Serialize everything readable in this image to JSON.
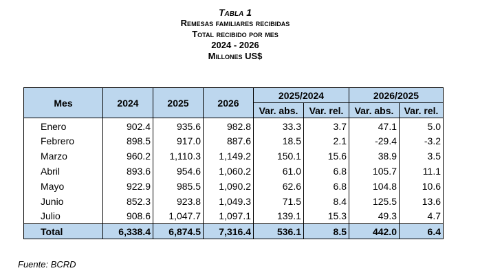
{
  "title": {
    "line1": "Tabla 1",
    "line2": "Remesas familiares recibidas",
    "line3": "Total recibido por mes",
    "line4": "2024 - 2026",
    "line5": "Millones US$"
  },
  "header": {
    "mes": "Mes",
    "y2024": "2024",
    "y2025": "2025",
    "y2026": "2026",
    "group1": "2025/2024",
    "group2": "2026/2025",
    "var_abs": "Var. abs.",
    "var_rel": "Var. rel."
  },
  "rows": [
    {
      "mes": "Enero",
      "v2024": "902.4",
      "v2025": "935.6",
      "v2026": "982.8",
      "abs1": "33.3",
      "rel1": "3.7",
      "abs2": "47.1",
      "rel2": "5.0"
    },
    {
      "mes": "Febrero",
      "v2024": "898.5",
      "v2025": "917.0",
      "v2026": "887.6",
      "abs1": "18.5",
      "rel1": "2.1",
      "abs2": "-29.4",
      "rel2": "-3.2"
    },
    {
      "mes": "Marzo",
      "v2024": "960.2",
      "v2025": "1,110.3",
      "v2026": "1,149.2",
      "abs1": "150.1",
      "rel1": "15.6",
      "abs2": "38.9",
      "rel2": "3.5"
    },
    {
      "mes": "Abril",
      "v2024": "893.6",
      "v2025": "954.6",
      "v2026": "1,060.2",
      "abs1": "61.0",
      "rel1": "6.8",
      "abs2": "105.7",
      "rel2": "11.1"
    },
    {
      "mes": "Mayo",
      "v2024": "922.9",
      "v2025": "985.5",
      "v2026": "1,090.2",
      "abs1": "62.6",
      "rel1": "6.8",
      "abs2": "104.8",
      "rel2": "10.6"
    },
    {
      "mes": "Junio",
      "v2024": "852.3",
      "v2025": "923.8",
      "v2026": "1,049.3",
      "abs1": "71.5",
      "rel1": "8.4",
      "abs2": "125.5",
      "rel2": "13.6"
    },
    {
      "mes": "Julio",
      "v2024": "908.6",
      "v2025": "1,047.7",
      "v2026": "1,097.1",
      "abs1": "139.1",
      "rel1": "15.3",
      "abs2": "49.3",
      "rel2": "4.7"
    }
  ],
  "total": {
    "mes": "Total",
    "v2024": "6,338.4",
    "v2025": "6,874.5",
    "v2026": "7,316.4",
    "abs1": "536.1",
    "rel1": "8.5",
    "abs2": "442.0",
    "rel2": "6.4"
  },
  "source": "Fuente: BCRD",
  "colors": {
    "header_fill": "#bdd7ee"
  }
}
